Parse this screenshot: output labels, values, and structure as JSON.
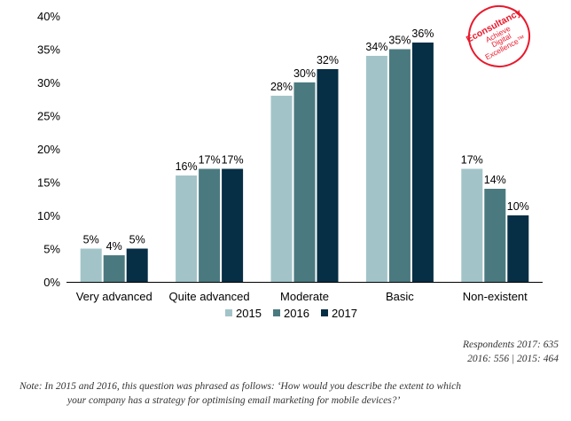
{
  "chart_data": {
    "type": "bar",
    "categories": [
      "Very advanced",
      "Quite advanced",
      "Moderate",
      "Basic",
      "Non-existent"
    ],
    "series": [
      {
        "name": "2015",
        "values": [
          5,
          16,
          28,
          34,
          17
        ],
        "color": "#a2c4c9"
      },
      {
        "name": "2016",
        "values": [
          4,
          17,
          30,
          35,
          14
        ],
        "color": "#4a7a80"
      },
      {
        "name": "2017",
        "values": [
          5,
          17,
          32,
          36,
          10
        ],
        "color": "#062e45"
      }
    ],
    "ylim": [
      0,
      40
    ],
    "yticks": [
      0,
      5,
      10,
      15,
      20,
      25,
      30,
      35,
      40
    ],
    "value_suffix": "%",
    "legend_position": "bottom",
    "grid": false
  },
  "logo": {
    "brand": "Econsultancy",
    "tagline": [
      "Achieve",
      "Digital",
      "Excellence™"
    ]
  },
  "footer": {
    "respondents_line1": "Respondents 2017: 635",
    "respondents_line2": "2016: 556 | 2015: 464",
    "note_line1": "Note: In 2015 and 2016, this question was phrased as follows: ‘How would you describe the extent to which",
    "note_line2": "your company has a strategy for optimising email marketing for mobile devices?’"
  }
}
